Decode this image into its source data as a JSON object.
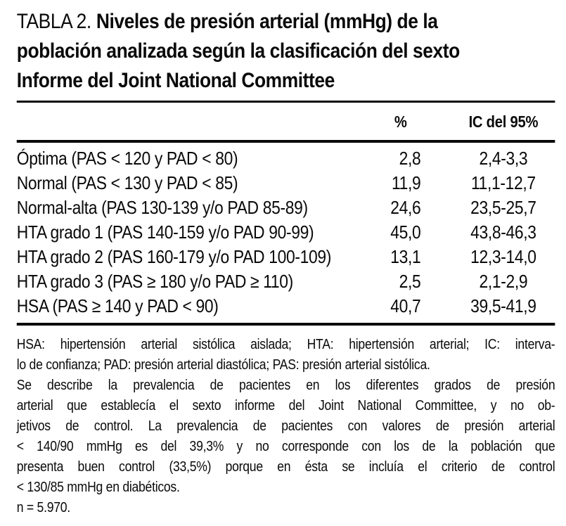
{
  "title": {
    "label": "TABLA 2.",
    "lines": [
      "Niveles de presión arterial (mmHg) de la",
      "población analizada según la clasificación del sexto",
      "Informe del Joint National Committee"
    ]
  },
  "table": {
    "columns": {
      "pct": "%",
      "ic": "IC del 95%"
    },
    "rows": [
      {
        "label": "Óptima (PAS < 120 y PAD < 80)",
        "pct": "2,8",
        "ic": "2,4-3,3"
      },
      {
        "label": "Normal (PAS < 130 y PAD < 85)",
        "pct": "11,9",
        "ic": "11,1-12,7"
      },
      {
        "label": "Normal-alta (PAS 130-139 y/o PAD 85-89)",
        "pct": "24,6",
        "ic": "23,5-25,7"
      },
      {
        "label": "HTA grado 1 (PAS 140-159 y/o PAD 90-99)",
        "pct": "45,0",
        "ic": "43,8-46,3"
      },
      {
        "label": "HTA grado 2 (PAS 160-179 y/o PAD 100-109)",
        "pct": "13,1",
        "ic": "12,3-14,0"
      },
      {
        "label": "HTA grado 3 (PAS ≥ 180 y/o PAD ≥ 110)",
        "pct": "2,5",
        "ic": "2,1-2,9"
      },
      {
        "label": "HSA (PAS ≥ 140 y PAD < 90)",
        "pct": "40,7",
        "ic": "39,5-41,9"
      }
    ]
  },
  "footnotes": {
    "lines": [
      "HSA: hipertensión arterial sistólica aislada; HTA: hipertensión arterial; IC: interva-",
      "lo de confianza; PAD: presión arterial diastólica; PAS: presión arterial sistólica.",
      "Se describe la prevalencia de pacientes en los diferentes grados de presión",
      "arterial que establecía el sexto informe del Joint National Committee, y no ob-",
      "jetivos de control. La prevalencia de pacientes con valores de presión arterial",
      "< 140/90 mmHg es del 39,3% y no corresponde con los de la población que",
      "presenta buen control (33,5%) porque en ésta se incluía el criterio de control",
      "< 130/85 mmHg en diabéticos.",
      "n = 5.970."
    ]
  },
  "colors": {
    "text": "#0a0a0a",
    "background": "#ffffff",
    "rule": "#0a0a0a"
  }
}
